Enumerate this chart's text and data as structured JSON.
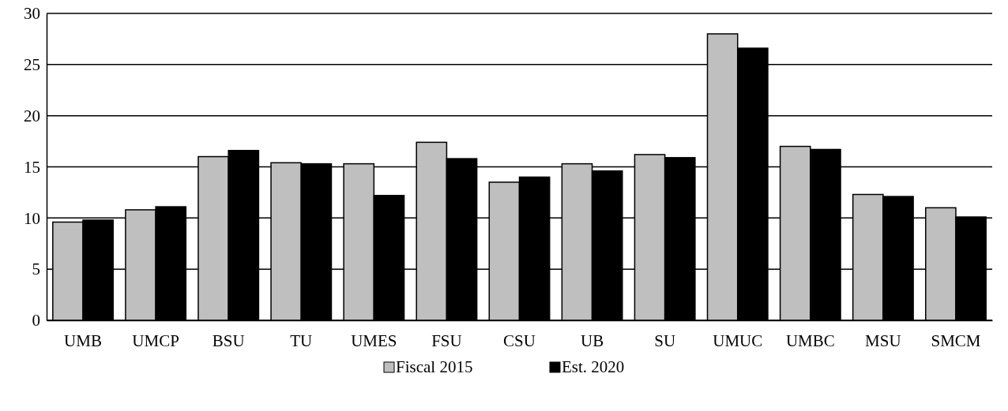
{
  "chart_data": {
    "type": "bar",
    "categories": [
      "UMB",
      "UMCP",
      "BSU",
      "TU",
      "UMES",
      "FSU",
      "CSU",
      "UB",
      "SU",
      "UMUC",
      "UMBC",
      "MSU",
      "SMCM"
    ],
    "series": [
      {
        "name": "Fiscal 2015",
        "color": "#bfbfbf",
        "values": [
          9.6,
          10.8,
          16.0,
          15.4,
          15.3,
          17.4,
          13.5,
          15.3,
          16.2,
          28.0,
          17.0,
          12.3,
          11.0
        ]
      },
      {
        "name": "Est. 2020",
        "color": "#000000",
        "values": [
          9.8,
          11.1,
          16.6,
          15.3,
          12.2,
          15.8,
          14.0,
          14.6,
          15.9,
          26.6,
          16.7,
          12.1,
          10.1
        ]
      }
    ],
    "ylim": [
      0,
      30
    ],
    "yticks": [
      0,
      5,
      10,
      15,
      20,
      25,
      30
    ],
    "grid": "y",
    "legend": "bottom"
  }
}
